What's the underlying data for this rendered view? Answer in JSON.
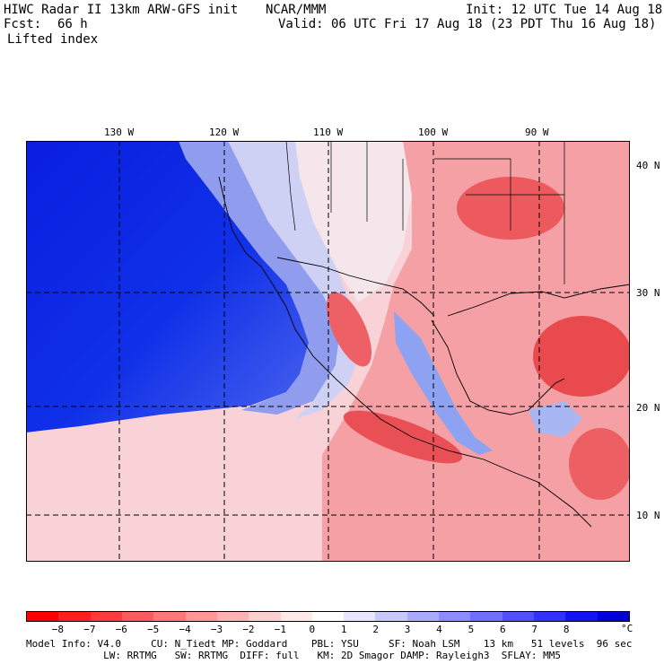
{
  "header": {
    "title": "HIWC Radar II 13km ARW-GFS init",
    "org": "NCAR/MMM",
    "init": "Init: 12 UTC Tue 14 Aug 18",
    "fcst_label": "Fcst:",
    "fcst_value": "66 h",
    "valid": "Valid: 06 UTC Fri 17 Aug 18 (23 PDT Thu 16 Aug 18)",
    "field": "Lifted index"
  },
  "map": {
    "lon_labels": [
      "130 W",
      "120 W",
      "110 W",
      "100 W",
      "90 W"
    ],
    "lat_labels": [
      "40 N",
      "30 N",
      "20 N",
      "10 N"
    ],
    "colors": {
      "ocean_deep": "#0a1ee0",
      "ocean_mid": "#6f86f0",
      "neutral": "#f6e4e6",
      "warm": "#f6a3a3",
      "hot": "#ef4b4b",
      "grid": "#000000"
    }
  },
  "colorbar": {
    "colors": [
      "#ff0000",
      "#ff1f1f",
      "#ff3b3b",
      "#ff5a5a",
      "#ff7878",
      "#ff9696",
      "#ffb2b2",
      "#ffcfcf",
      "#ffe9e9",
      "#ffffff",
      "#e6e6ff",
      "#c8c8ff",
      "#aaaaff",
      "#8c8cff",
      "#6e6eff",
      "#5050ff",
      "#3232ff",
      "#1414f0",
      "#0000d8"
    ],
    "ticks": [
      "−8",
      "−7",
      "−6",
      "−5",
      "−4",
      "−3",
      "−2",
      "−1",
      "0",
      "1",
      "2",
      "3",
      "4",
      "5",
      "6",
      "7",
      "8"
    ],
    "unit": "°C"
  },
  "model_info": {
    "line1": "Model Info: V4.0     CU: N_Tiedt MP: Goddard    PBL: YSU     SF: Noah LSM    13 km   51 levels  96 sec",
    "line2": "             LW: RRTMG   SW: RRTMG  DIFF: full   KM: 2D Smagor DAMP: Rayleigh3  SFLAY: MM5"
  }
}
